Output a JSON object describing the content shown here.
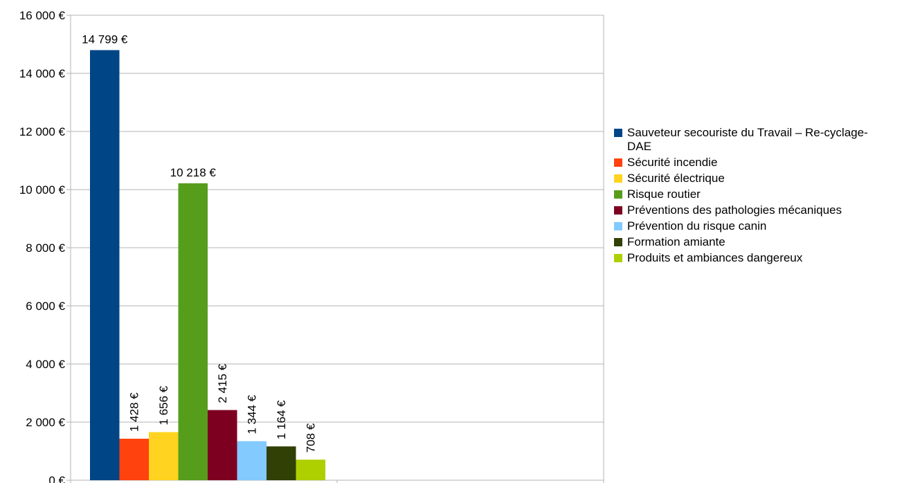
{
  "chart_data": {
    "type": "bar",
    "categories": [
      ""
    ],
    "ylim": [
      0,
      16000
    ],
    "y_ticks": [
      "0 €",
      "2 000 €",
      "4 000 €",
      "6 000 €",
      "8 000 €",
      "10 000 €",
      "12 000 €",
      "14 000 €",
      "16 000 €"
    ],
    "y_tick_values": [
      0,
      2000,
      4000,
      6000,
      8000,
      10000,
      12000,
      14000,
      16000
    ],
    "grid": true,
    "legend_position": "right",
    "series": [
      {
        "name": "Sauveteur secouriste du Travail – Re-cyclage- DAE",
        "value": 14799,
        "label": "14 799 €",
        "color": "#004586"
      },
      {
        "name": "Sécurité incendie",
        "value": 1428,
        "label": "1 428 €",
        "color": "#ff420e"
      },
      {
        "name": "Sécurité électrique",
        "value": 1656,
        "label": "1 656 €",
        "color": "#ffd320"
      },
      {
        "name": "Risque routier",
        "value": 10218,
        "label": "10 218 €",
        "color": "#579d1c"
      },
      {
        "name": "Préventions des pathologies mécaniques",
        "value": 2415,
        "label": "2 415 €",
        "color": "#7e0021"
      },
      {
        "name": "Prévention du risque canin",
        "value": 1344,
        "label": "1 344 €",
        "color": "#83caff"
      },
      {
        "name": "Formation amiante",
        "value": 1164,
        "label": "1 164 €",
        "color": "#314004"
      },
      {
        "name": "Produits et ambiances dangereux",
        "value": 708,
        "label": "708 €",
        "color": "#aecf00"
      }
    ]
  }
}
